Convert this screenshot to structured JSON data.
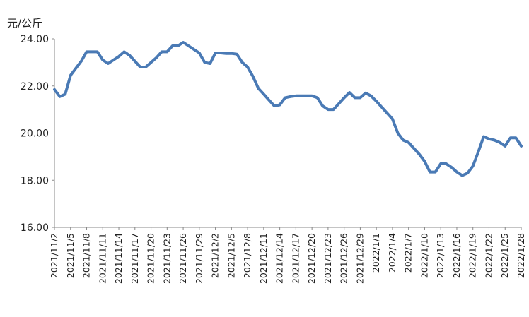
{
  "chart_data": {
    "type": "line",
    "unit_label": "元/公斤",
    "ylim": [
      16,
      24
    ],
    "yticks": [
      "16.00",
      "18.00",
      "20.00",
      "22.00",
      "24.00"
    ],
    "grid": false,
    "legend": "none",
    "x_tick_labels": [
      "2021/11/2",
      "2021/11/5",
      "2021/11/8",
      "2021/11/11",
      "2021/11/14",
      "2021/11/17",
      "2021/11/20",
      "2021/11/23",
      "2021/11/26",
      "2021/11/29",
      "2021/12/2",
      "2021/12/5",
      "2021/12/8",
      "2021/12/11",
      "2021/12/14",
      "2021/12/17",
      "2021/12/20",
      "2021/12/23",
      "2021/12/26",
      "2021/12/29",
      "2022/1/1",
      "2022/1/4",
      "2022/1/7",
      "2022/1/10",
      "2022/1/13",
      "2022/1/16",
      "2022/1/19",
      "2022/1/22",
      "2022/1/25",
      "2022/1/28"
    ],
    "series": [
      {
        "color": "#4a7ab5",
        "values": [
          21.85,
          21.55,
          21.65,
          22.45,
          22.75,
          23.05,
          23.45,
          23.45,
          23.45,
          23.1,
          22.95,
          23.1,
          23.25,
          23.45,
          23.3,
          23.05,
          22.8,
          22.8,
          23.0,
          23.2,
          23.45,
          23.45,
          23.7,
          23.7,
          23.85,
          23.7,
          23.55,
          23.4,
          23.0,
          22.95,
          23.4,
          23.4,
          23.38,
          23.38,
          23.35,
          23.0,
          22.8,
          22.4,
          21.9,
          21.65,
          21.4,
          21.15,
          21.2,
          21.5,
          21.55,
          21.58,
          21.58,
          21.58,
          21.58,
          21.5,
          21.15,
          21.0,
          21.0,
          21.25,
          21.5,
          21.72,
          21.5,
          21.5,
          21.7,
          21.58,
          21.35,
          21.1,
          20.85,
          20.6,
          20.0,
          19.7,
          19.6,
          19.35,
          19.1,
          18.8,
          18.35,
          18.35,
          18.7,
          18.7,
          18.55,
          18.35,
          18.2,
          18.3,
          18.6,
          19.2,
          19.85,
          19.75,
          19.7,
          19.6,
          19.45,
          19.8,
          19.8,
          19.45
        ]
      }
    ]
  }
}
